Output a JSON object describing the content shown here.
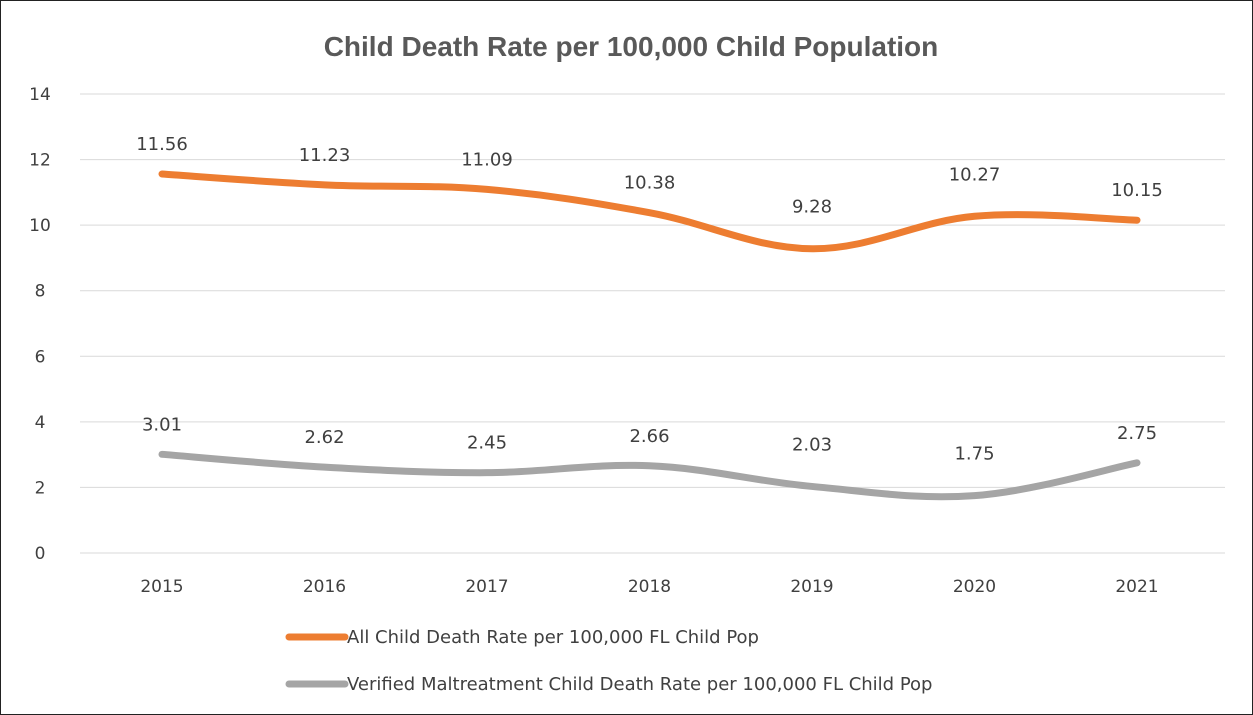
{
  "chart_data": {
    "type": "line",
    "title": "Child Death Rate per 100,000 Child Population",
    "xlabel": "",
    "ylabel": "",
    "categories": [
      "2015",
      "2016",
      "2017",
      "2018",
      "2019",
      "2020",
      "2021"
    ],
    "ylim": [
      0,
      14
    ],
    "yticks": [
      "0",
      "2",
      "4",
      "6",
      "8",
      "10",
      "12",
      "14"
    ],
    "grid": true,
    "legend_position": "bottom",
    "series": [
      {
        "name": "All Child Death Rate per 100,000 FL Child Pop",
        "color": "#ed7d31",
        "values": [
          11.56,
          11.23,
          11.09,
          10.38,
          9.28,
          10.27,
          10.15
        ],
        "labels": [
          "11.56",
          "11.23",
          "11.09",
          "10.38",
          "9.28",
          "10.27",
          "10.15"
        ]
      },
      {
        "name": "Verified Maltreatment Child Death Rate per 100,000 FL Child Pop",
        "color": "#a5a5a5",
        "values": [
          3.01,
          2.62,
          2.45,
          2.66,
          2.03,
          1.75,
          2.75
        ],
        "labels": [
          "3.01",
          "2.62",
          "2.45",
          "2.66",
          "2.03",
          "1.75",
          "2.75"
        ]
      }
    ]
  }
}
